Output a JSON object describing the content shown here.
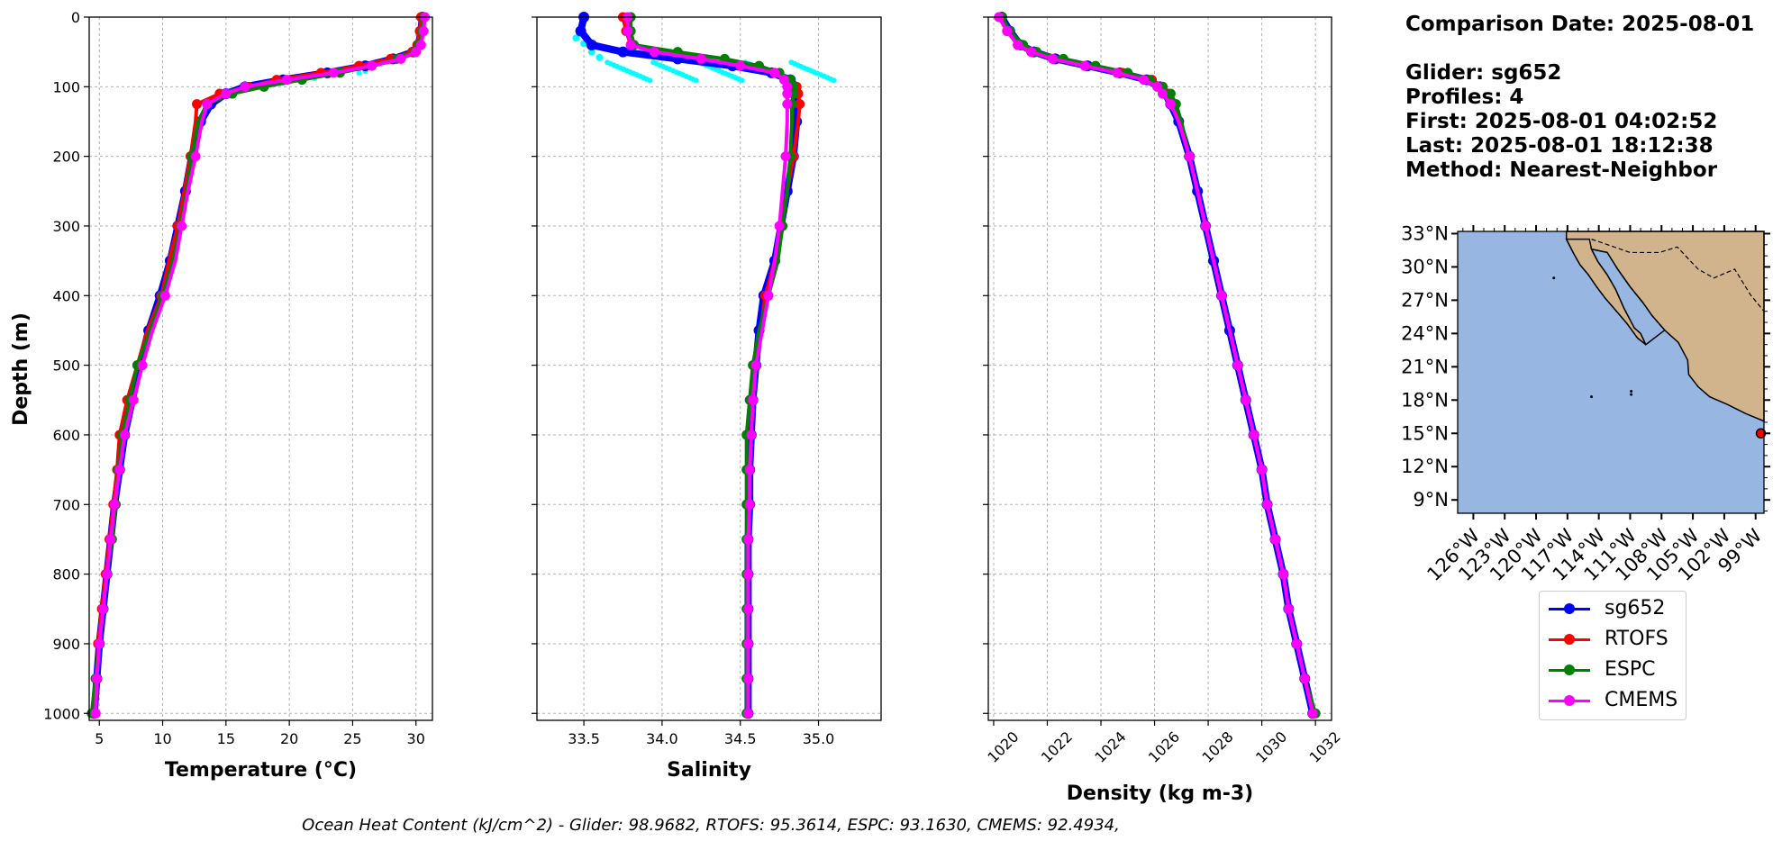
{
  "summary": {
    "comparison_date": "Comparison Date: 2025-08-01",
    "glider": "Glider: sg652",
    "profiles": "Profiles: 4",
    "first": "First: 2025-08-01 04:02:52",
    "last": "Last: 2025-08-01 18:12:38",
    "method": "Method: Nearest-Neighbor"
  },
  "footer": "Ocean Heat Content (kJ/cm^2) - Glider: 98.9682,  RTOFS: 95.3614,  ESPC: 93.1630,  CMEMS: 92.4934,",
  "colors": {
    "sg652": "#0000ff",
    "RTOFS": "#ff0000",
    "ESPC": "#008000",
    "CMEMS": "#ff00ff",
    "raw_glider": "#00ffff",
    "ocean": "#97b6e1",
    "land": "#d2b48c"
  },
  "legend": [
    "sg652",
    "RTOFS",
    "ESPC",
    "CMEMS"
  ],
  "map": {
    "lat_labels": [
      "33°N",
      "30°N",
      "27°N",
      "24°N",
      "21°N",
      "18°N",
      "15°N",
      "12°N",
      "9°N"
    ],
    "lon_labels": [
      "126°W",
      "123°W",
      "120°W",
      "117°W",
      "114°W",
      "111°W",
      "108°W",
      "105°W",
      "102°W",
      "99°W"
    ],
    "glider_location": {
      "lon": -98.5,
      "lat": 15.0
    },
    "extent": {
      "lon": [
        -127.5,
        -98.2
      ],
      "lat": [
        7.8,
        33.2
      ]
    }
  },
  "chart_data": [
    {
      "type": "line",
      "xlabel": "Temperature (°C)",
      "ylabel": "Depth (m)",
      "xlim": [
        4.2,
        31.3
      ],
      "ylim": [
        1010,
        0
      ],
      "xticks": [
        5,
        10,
        15,
        20,
        25,
        30
      ],
      "yticks": [
        0,
        100,
        200,
        300,
        400,
        500,
        600,
        700,
        800,
        900,
        1000
      ],
      "grid": true,
      "depths": [
        0,
        20,
        40,
        50,
        60,
        70,
        80,
        90,
        100,
        110,
        125,
        150,
        200,
        250,
        300,
        350,
        400,
        450,
        500,
        550,
        600,
        650,
        700,
        750,
        800,
        850,
        900,
        950,
        1000
      ],
      "series": [
        {
          "name": "sg652",
          "values": [
            30.5,
            30.4,
            30.2,
            29.8,
            28.2,
            26.0,
            23.0,
            19.5,
            16.5,
            15.0,
            13.8,
            13.0,
            12.3,
            11.8,
            11.2,
            10.6,
            9.8,
            8.9,
            8.2,
            7.6,
            7.0,
            6.6,
            6.2,
            5.9,
            5.6,
            5.3,
            5.0,
            4.8,
            4.6
          ]
        },
        {
          "name": "RTOFS",
          "values": [
            30.4,
            30.3,
            30.1,
            29.7,
            28.0,
            25.5,
            22.5,
            19.0,
            16.8,
            14.5,
            12.7,
            12.6,
            12.2,
            11.7,
            11.2,
            10.5,
            9.9,
            8.8,
            8.0,
            7.2,
            6.6,
            6.4,
            6.1,
            5.8,
            5.5,
            5.2,
            4.9,
            4.8,
            4.7
          ]
        },
        {
          "name": "ESPC",
          "values": [
            30.6,
            30.5,
            30.2,
            29.9,
            28.5,
            26.5,
            24.0,
            21.0,
            18.0,
            15.5,
            13.5,
            12.8,
            12.3,
            11.9,
            11.4,
            10.8,
            10.0,
            9.0,
            8.0,
            7.4,
            6.8,
            6.5,
            6.3,
            6.0,
            5.6,
            5.3,
            5.0,
            4.7,
            4.4
          ]
        },
        {
          "name": "CMEMS",
          "values": [
            30.7,
            30.6,
            30.4,
            30.0,
            28.8,
            26.5,
            23.5,
            19.8,
            16.5,
            15.0,
            13.5,
            13.1,
            12.6,
            12.0,
            11.5,
            11.0,
            10.2,
            9.2,
            8.4,
            7.7,
            7.0,
            6.6,
            6.2,
            5.9,
            5.6,
            5.3,
            5.0,
            4.8,
            4.7
          ]
        }
      ]
    },
    {
      "type": "line",
      "xlabel": "Salinity",
      "ylabel": "",
      "xlim": [
        33.2,
        35.4
      ],
      "ylim": [
        1010,
        0
      ],
      "xticks": [
        33.5,
        34.0,
        34.5,
        35.0
      ],
      "yticks": [
        0,
        100,
        200,
        300,
        400,
        500,
        600,
        700,
        800,
        900,
        1000
      ],
      "grid": true,
      "depths": [
        0,
        20,
        40,
        50,
        60,
        70,
        80,
        90,
        100,
        110,
        125,
        150,
        200,
        250,
        300,
        350,
        400,
        450,
        500,
        550,
        600,
        650,
        700,
        750,
        800,
        850,
        900,
        950,
        1000
      ],
      "series": [
        {
          "name": "sg652",
          "values": [
            33.5,
            33.48,
            33.55,
            33.75,
            34.1,
            34.45,
            34.7,
            34.82,
            34.85,
            34.85,
            34.86,
            34.86,
            34.84,
            34.8,
            34.76,
            34.72,
            34.65,
            34.62,
            34.6,
            34.58,
            34.57,
            34.56,
            34.56,
            34.55,
            34.55,
            34.55,
            34.55,
            34.55,
            34.55
          ]
        },
        {
          "name": "RTOFS",
          "values": [
            33.75,
            33.77,
            33.8,
            33.95,
            34.25,
            34.5,
            34.72,
            34.82,
            34.86,
            34.87,
            34.88,
            34.87,
            34.84,
            34.8,
            34.76,
            34.72,
            34.66,
            34.63,
            34.6,
            34.58,
            34.57,
            34.56,
            34.56,
            34.55,
            34.55,
            34.55,
            34.55,
            34.55,
            34.55
          ]
        },
        {
          "name": "ESPC",
          "values": [
            33.8,
            33.8,
            33.82,
            34.1,
            34.4,
            34.62,
            34.75,
            34.82,
            34.84,
            34.84,
            34.83,
            34.83,
            34.82,
            34.8,
            34.77,
            34.74,
            34.68,
            34.62,
            34.58,
            34.56,
            34.54,
            34.54,
            34.54,
            34.54,
            34.54,
            34.54,
            34.54,
            34.54,
            34.54
          ]
        },
        {
          "name": "CMEMS",
          "values": [
            33.78,
            33.78,
            33.8,
            33.95,
            34.25,
            34.5,
            34.72,
            34.78,
            34.8,
            34.8,
            34.8,
            34.8,
            34.79,
            34.77,
            34.75,
            34.72,
            34.68,
            34.64,
            34.6,
            34.58,
            34.57,
            34.56,
            34.56,
            34.55,
            34.55,
            34.55,
            34.55,
            34.55,
            34.55
          ]
        }
      ]
    },
    {
      "type": "line",
      "xlabel": "Density (kg m-3)",
      "ylabel": "",
      "xlim": [
        1019.8,
        1032.6
      ],
      "ylim": [
        1010,
        0
      ],
      "xticks": [
        1020,
        1022,
        1024,
        1026,
        1028,
        1030,
        1032
      ],
      "yticks": [
        0,
        100,
        200,
        300,
        400,
        500,
        600,
        700,
        800,
        900,
        1000
      ],
      "grid": true,
      "depths": [
        0,
        20,
        40,
        50,
        60,
        70,
        80,
        90,
        100,
        110,
        125,
        150,
        200,
        250,
        300,
        350,
        400,
        450,
        500,
        550,
        600,
        650,
        700,
        750,
        800,
        850,
        900,
        950,
        1000
      ],
      "series": [
        {
          "name": "sg652",
          "values": [
            1020.3,
            1020.6,
            1021.0,
            1021.5,
            1022.3,
            1023.5,
            1024.7,
            1025.7,
            1026.2,
            1026.4,
            1026.6,
            1026.9,
            1027.3,
            1027.6,
            1027.9,
            1028.2,
            1028.5,
            1028.8,
            1029.1,
            1029.4,
            1029.7,
            1030.0,
            1030.2,
            1030.5,
            1030.8,
            1031.0,
            1031.3,
            1031.6,
            1031.9
          ]
        },
        {
          "name": "RTOFS",
          "values": [
            1020.2,
            1020.5,
            1020.9,
            1021.4,
            1022.2,
            1023.4,
            1024.8,
            1025.9,
            1026.3,
            1026.5,
            1026.7,
            1026.9,
            1027.3,
            1027.6,
            1027.9,
            1028.2,
            1028.5,
            1028.8,
            1029.1,
            1029.4,
            1029.7,
            1030.0,
            1030.2,
            1030.5,
            1030.8,
            1031.0,
            1031.3,
            1031.6,
            1031.9
          ]
        },
        {
          "name": "ESPC",
          "values": [
            1020.3,
            1020.6,
            1021.1,
            1021.6,
            1022.6,
            1023.8,
            1025.0,
            1025.8,
            1026.3,
            1026.6,
            1026.8,
            1027.0,
            1027.3,
            1027.6,
            1027.9,
            1028.2,
            1028.5,
            1028.8,
            1029.1,
            1029.4,
            1029.7,
            1030.0,
            1030.2,
            1030.5,
            1030.8,
            1031.0,
            1031.3,
            1031.6,
            1032.0
          ]
        },
        {
          "name": "CMEMS",
          "values": [
            1020.2,
            1020.5,
            1020.9,
            1021.4,
            1022.2,
            1023.4,
            1024.6,
            1025.6,
            1026.1,
            1026.3,
            1026.6,
            1026.9,
            1027.3,
            1027.6,
            1027.9,
            1028.2,
            1028.5,
            1028.8,
            1029.1,
            1029.4,
            1029.7,
            1030.0,
            1030.2,
            1030.5,
            1030.8,
            1031.0,
            1031.3,
            1031.6,
            1031.9
          ]
        }
      ]
    }
  ]
}
